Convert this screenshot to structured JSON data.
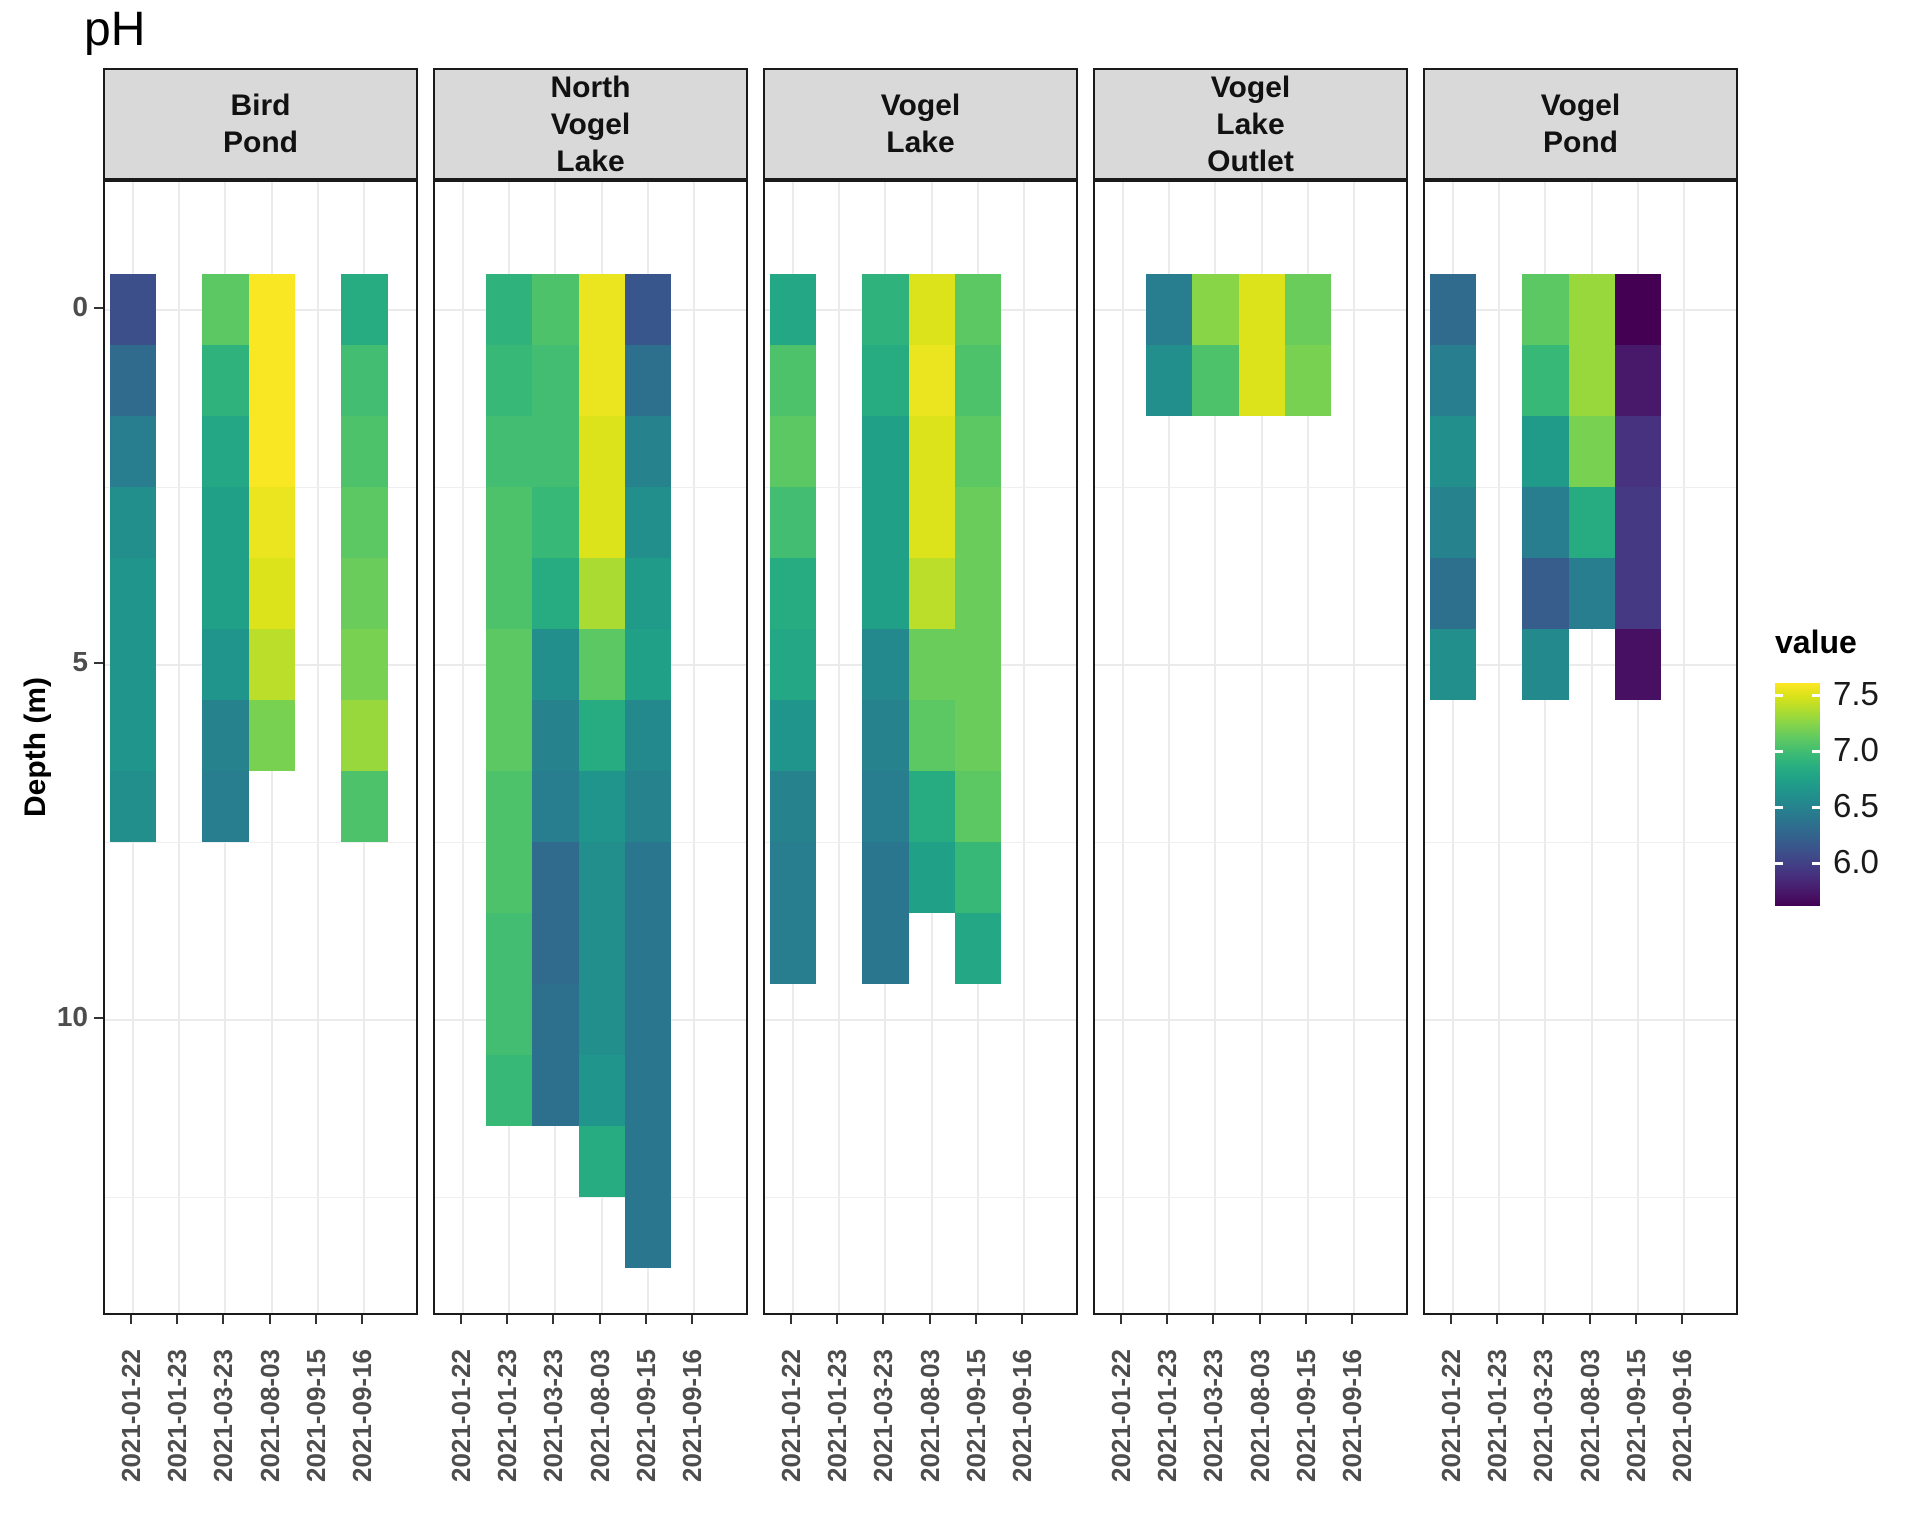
{
  "chart_data": {
    "type": "heatmap",
    "title": "pH",
    "ylabel": "Depth (m)",
    "xlabel": "",
    "x_categories": [
      "2021-01-22",
      "2021-01-23",
      "2021-03-23",
      "2021-08-03",
      "2021-09-15",
      "2021-09-16"
    ],
    "y_axis": {
      "ticks": [
        0,
        5,
        10
      ],
      "minor_ticks": [
        2.5,
        7.5,
        12.5
      ],
      "range": [
        -1.8,
        14.2
      ],
      "unit": "m"
    },
    "depth_bin_m": 1,
    "legend": {
      "title": "value",
      "ticks": [
        7.5,
        7.0,
        6.5,
        6.0
      ],
      "domain": [
        5.62,
        7.61
      ],
      "position": "right"
    },
    "colormap": [
      "#440154",
      "#48186a",
      "#472d7b",
      "#424086",
      "#3b528b",
      "#33638d",
      "#2c728e",
      "#26828e",
      "#21918c",
      "#1fa088",
      "#28ae80",
      "#3fbc73",
      "#5ec962",
      "#84d44b",
      "#addc30",
      "#d8e219",
      "#fde725"
    ],
    "colors": {
      "strip_fill": "#d9d9d9",
      "panel_border": "#1a1a1a",
      "grid_major": "#ebebeb",
      "tick_label": "#4d4d4d"
    },
    "facets": [
      {
        "label": "Bird\nPond",
        "series": [
          {
            "date": "2021-01-22",
            "start_depth": 0,
            "values": [
              6.1,
              6.3,
              6.45,
              6.6,
              6.65,
              6.65,
              6.65,
              6.6
            ]
          },
          {
            "date": "2021-03-23",
            "start_depth": 0,
            "values": [
              7.1,
              6.9,
              6.8,
              6.75,
              6.75,
              6.65,
              6.5,
              6.45
            ]
          },
          {
            "date": "2021-08-03",
            "start_depth": 0,
            "values": [
              7.6,
              7.6,
              7.6,
              7.55,
              7.5,
              7.4,
              7.2
            ]
          },
          {
            "date": "2021-09-16",
            "start_depth": 0,
            "values": [
              6.85,
              7.0,
              7.05,
              7.1,
              7.15,
              7.2,
              7.3,
              7.05
            ]
          }
        ]
      },
      {
        "label": "North\nVogel\nLake",
        "series": [
          {
            "date": "2021-01-23",
            "start_depth": 0,
            "values": [
              6.9,
              6.95,
              7.0,
              7.05,
              7.05,
              7.1,
              7.1,
              7.05,
              7.05,
              7.0,
              7.0,
              6.95
            ]
          },
          {
            "date": "2021-03-23",
            "start_depth": 0,
            "values": [
              7.05,
              7.0,
              7.0,
              6.95,
              6.85,
              6.6,
              6.5,
              6.45,
              6.3,
              6.3,
              6.35,
              6.35
            ]
          },
          {
            "date": "2021-08-03",
            "start_depth": 0,
            "values": [
              7.55,
              7.55,
              7.5,
              7.5,
              7.35,
              7.1,
              6.85,
              6.65,
              6.6,
              6.6,
              6.6,
              6.65,
              6.85
            ]
          },
          {
            "date": "2021-09-15",
            "start_depth": 0,
            "values": [
              6.15,
              6.35,
              6.5,
              6.6,
              6.7,
              6.75,
              6.55,
              6.5,
              6.4,
              6.4,
              6.4,
              6.4,
              6.4,
              6.4
            ]
          }
        ]
      },
      {
        "label": "Vogel\nLake",
        "series": [
          {
            "date": "2021-01-22",
            "start_depth": 0,
            "values": [
              6.8,
              7.05,
              7.1,
              7.0,
              6.85,
              6.8,
              6.65,
              6.5,
              6.45,
              6.45
            ]
          },
          {
            "date": "2021-03-23",
            "start_depth": 0,
            "values": [
              6.9,
              6.85,
              6.75,
              6.75,
              6.75,
              6.55,
              6.5,
              6.45,
              6.4,
              6.4
            ]
          },
          {
            "date": "2021-08-03",
            "start_depth": 0,
            "values": [
              7.5,
              7.55,
              7.5,
              7.5,
              7.4,
              7.15,
              7.1,
              6.85,
              6.75
            ]
          },
          {
            "date": "2021-09-15",
            "start_depth": 0,
            "values": [
              7.1,
              7.05,
              7.1,
              7.15,
              7.15,
              7.15,
              7.15,
              7.1,
              6.95,
              6.8
            ]
          }
        ]
      },
      {
        "label": "Vogel\nLake\nOutlet",
        "series": [
          {
            "date": "2021-01-23",
            "start_depth": 0,
            "values": [
              6.45,
              6.6
            ]
          },
          {
            "date": "2021-03-23",
            "start_depth": 0,
            "values": [
              7.25,
              7.05
            ]
          },
          {
            "date": "2021-08-03",
            "start_depth": 0,
            "values": [
              7.5,
              7.5
            ]
          },
          {
            "date": "2021-09-15",
            "start_depth": 0,
            "values": [
              7.15,
              7.2
            ]
          }
        ]
      },
      {
        "label": "Vogel\nPond",
        "series": [
          {
            "date": "2021-01-22",
            "start_depth": 0,
            "values": [
              6.3,
              6.45,
              6.6,
              6.5,
              6.35,
              6.6
            ]
          },
          {
            "date": "2021-03-23",
            "start_depth": 0,
            "values": [
              7.1,
              6.95,
              6.7,
              6.45,
              6.2,
              6.55
            ]
          },
          {
            "date": "2021-08-03",
            "start_depth": 0,
            "values": [
              7.3,
              7.3,
              7.2,
              6.85,
              6.45
            ]
          },
          {
            "date": "2021-09-15",
            "start_depth": 0,
            "values": [
              5.6,
              5.75,
              5.9,
              5.95,
              5.95,
              5.7
            ]
          }
        ]
      }
    ]
  }
}
